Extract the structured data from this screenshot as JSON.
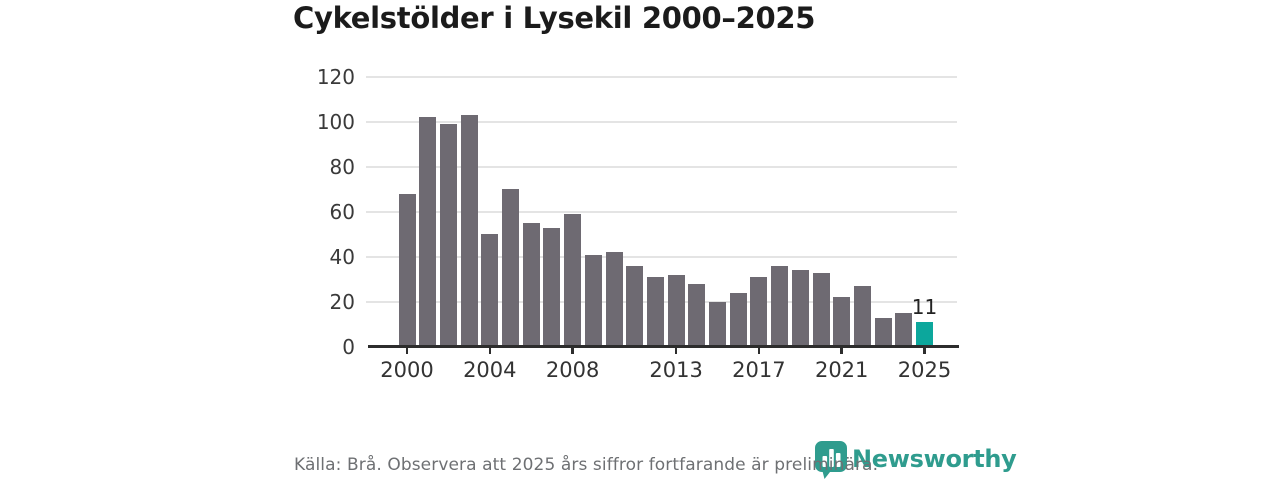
{
  "title": "Cykelstölder i Lysekil 2000–2025",
  "footer": {
    "source": "Källa: Brå. Observera att 2025 års siffror fortfarande är preliminära.",
    "brand": "Newsworthy",
    "logo_icon": "pin-bar-chart-icon"
  },
  "colors": {
    "bar": "#6e6a72",
    "highlight": "#0ca79c",
    "brand": "#2f9c8e",
    "grid": "#e4e4e4",
    "axis": "#2d2d2d",
    "title_text": "#1b1b1b",
    "muted_text": "#6e7073"
  },
  "chart_data": {
    "type": "bar",
    "title": "Cykelstölder i Lysekil 2000–2025",
    "x": [
      2000,
      2001,
      2002,
      2003,
      2004,
      2005,
      2006,
      2007,
      2008,
      2009,
      2010,
      2011,
      2012,
      2013,
      2014,
      2015,
      2016,
      2017,
      2018,
      2019,
      2020,
      2021,
      2022,
      2023,
      2024,
      2025
    ],
    "values": [
      68,
      102,
      99,
      103,
      50,
      70,
      55,
      53,
      59,
      41,
      42,
      36,
      31,
      32,
      28,
      20,
      24,
      31,
      36,
      34,
      33,
      22,
      27,
      13,
      15,
      11
    ],
    "highlight_index": 25,
    "highlight_label": "11",
    "xlabel": "",
    "ylabel": "",
    "ylim": [
      0,
      120
    ],
    "yticks": [
      0,
      20,
      40,
      60,
      80,
      100,
      120
    ],
    "xticks": [
      2000,
      2004,
      2008,
      2013,
      2017,
      2021,
      2025
    ],
    "grid": true,
    "legend": false
  }
}
